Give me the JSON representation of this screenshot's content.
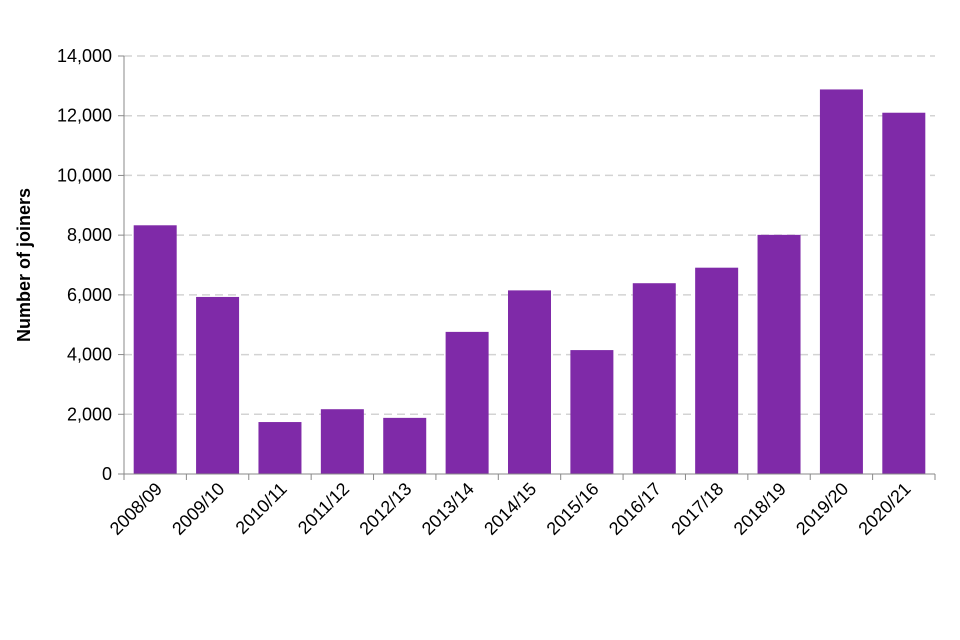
{
  "chart_data": {
    "type": "bar",
    "categories": [
      "2008/09",
      "2009/10",
      "2010/11",
      "2011/12",
      "2012/13",
      "2013/14",
      "2014/15",
      "2015/16",
      "2016/17",
      "2017/18",
      "2018/19",
      "2019/20",
      "2020/21"
    ],
    "values": [
      8330,
      5930,
      1740,
      2170,
      1880,
      4760,
      6150,
      4150,
      6390,
      6910,
      8010,
      12880,
      12100
    ],
    "title": "",
    "xlabel": "",
    "ylabel": "Number of joiners",
    "ylim": [
      0,
      14000
    ],
    "yticks": [
      0,
      2000,
      4000,
      6000,
      8000,
      10000,
      12000,
      14000
    ],
    "ytick_labels": [
      "0",
      "2,000",
      "4,000",
      "6,000",
      "8,000",
      "10,000",
      "12,000",
      "14,000"
    ],
    "grid": "horizontal dashed",
    "legend": "none",
    "bar_color": "#7F2AA8",
    "grid_color": "#D3D3D3",
    "axis_color": "#888888"
  }
}
